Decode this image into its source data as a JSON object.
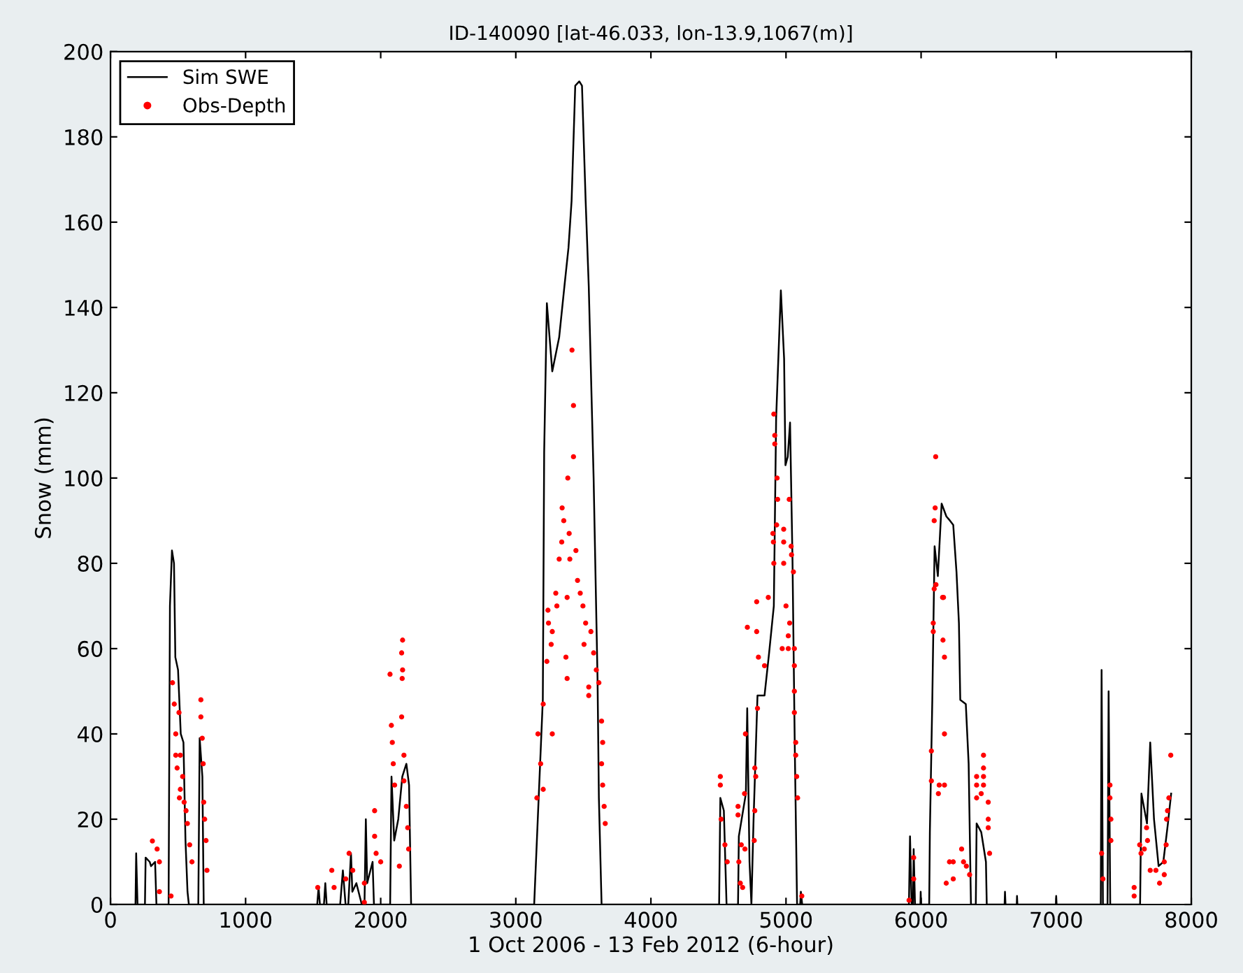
{
  "chart_data": {
    "type": "line",
    "title": "ID-140090 [lat-46.033, lon-13.9,1067(m)]",
    "xlabel": "1 Oct 2006 - 13 Feb 2012 (6-hour)",
    "ylabel": "Snow (mm)",
    "xlim": [
      0,
      8000
    ],
    "xticks": [
      0,
      1000,
      2000,
      3000,
      4000,
      5000,
      6000,
      7000,
      8000
    ],
    "ylim": [
      0,
      200
    ],
    "yticks": [
      0,
      20,
      40,
      60,
      80,
      100,
      120,
      140,
      160,
      180,
      200
    ],
    "grid": false,
    "legend": "top left",
    "series": [
      {
        "name": "Sim SWE",
        "color": "#000000",
        "marker": "none",
        "line_style": "solid",
        "x": [
          0,
          185,
          190,
          200,
          255,
          260,
          290,
          300,
          330,
          340,
          430,
          440,
          455,
          470,
          480,
          500,
          520,
          540,
          555,
          570,
          580,
          650,
          660,
          680,
          690,
          1530,
          1540,
          1550,
          1580,
          1590,
          1600,
          1700,
          1720,
          1740,
          1760,
          1780,
          1790,
          1820,
          1860,
          1880,
          1890,
          1900,
          1940,
          1950,
          2070,
          2080,
          2100,
          2130,
          2160,
          2190,
          2210,
          2225,
          3136,
          3160,
          3200,
          3210,
          3230,
          3270,
          3321,
          3360,
          3390,
          3413,
          3440,
          3470,
          3490,
          3517,
          3540,
          3576,
          3605,
          3615,
          3635,
          4505,
          4514,
          4540,
          4560,
          4645,
          4651,
          4703,
          4713,
          4730,
          4744,
          4760,
          4772,
          4789,
          4841,
          4875,
          4910,
          4927,
          4962,
          4986,
          4996,
          5013,
          5030,
          5048,
          5065,
          5082,
          5105,
          5110,
          5120,
          5910,
          5918,
          5930,
          5940,
          5945,
          5955,
          5995,
          5997,
          6000,
          6060,
          6065,
          6083,
          6100,
          6124,
          6152,
          6187,
          6214,
          6238,
          6262,
          6280,
          6290,
          6331,
          6352,
          6369,
          6405,
          6411,
          6445,
          6480,
          6486,
          6618,
          6621,
          6625,
          6708,
          6710,
          6713,
          6998,
          7000,
          7003,
          7330,
          7336,
          7346,
          7380,
          7388,
          7400,
          7621,
          7631,
          7672,
          7696,
          7724,
          7758,
          7793,
          7827,
          7851
        ],
        "values": [
          0,
          0,
          12,
          0,
          0,
          11,
          10,
          9,
          10,
          0,
          0,
          70,
          83,
          80,
          58,
          55,
          40,
          38,
          15,
          3,
          0,
          0,
          39,
          30,
          0,
          0,
          4,
          0,
          0,
          5,
          0,
          0,
          8,
          0,
          0,
          12,
          3,
          5,
          0,
          0,
          20,
          5,
          10,
          0,
          0,
          30,
          15,
          20,
          30,
          33,
          28,
          0,
          0,
          18,
          48,
          106,
          141,
          125,
          133,
          145,
          154,
          165,
          192,
          193,
          192,
          165,
          145,
          100,
          53,
          25,
          0,
          0,
          25,
          22,
          0,
          0,
          16,
          26,
          46,
          10,
          0,
          20,
          32,
          49,
          49,
          59,
          70,
          114,
          144,
          128,
          103,
          105,
          113,
          81,
          37,
          0,
          0,
          3,
          0,
          0,
          16,
          0,
          0,
          13,
          0,
          0,
          3,
          0,
          0,
          17,
          48,
          84,
          77,
          94,
          91,
          90,
          89,
          78,
          66,
          48,
          47,
          33,
          0,
          0,
          19,
          17,
          10,
          0,
          0,
          3,
          0,
          0,
          2,
          0,
          0,
          2,
          0,
          0,
          55,
          0,
          0,
          50,
          0,
          0,
          26,
          19,
          38,
          20,
          9,
          10,
          19,
          26
        ]
      },
      {
        "name": "Obs-Depth",
        "type": "scatter",
        "color": "#ff0000",
        "marker": "circle",
        "x": [
          310,
          345,
          362,
          362,
          448,
          459,
          472,
          507,
          483,
          483,
          517,
          493,
          517,
          534,
          510,
          545,
          559,
          569,
          586,
          603,
          669,
          669,
          679,
          686,
          690,
          697,
          707,
          714,
          1534,
          1638,
          1655,
          1741,
          1766,
          1793,
          1879,
          1879,
          1955,
          1955,
          1966,
          2000,
          2069,
          2079,
          2086,
          2093,
          2103,
          2155,
          2162,
          2162,
          2159,
          2155,
          2172,
          2172,
          2190,
          2200,
          2207,
          2138,
          3416,
          3427,
          3427,
          3385,
          3343,
          3355,
          3395,
          3340,
          3400,
          3321,
          3445,
          3457,
          3477,
          3296,
          3304,
          3380,
          3497,
          3238,
          3242,
          3270,
          3517,
          3556,
          3505,
          3576,
          3262,
          3371,
          3230,
          3596,
          3615,
          3380,
          3540,
          3540,
          3203,
          3164,
          3270,
          3184,
          3203,
          3156,
          3635,
          3643,
          3635,
          3643,
          3654,
          3662,
          4910,
          4917,
          4917,
          4934,
          4938,
          5024,
          4903,
          4931,
          4983,
          4907,
          4983,
          4910,
          4983,
          5038,
          5041,
          5055,
          4783,
          4869,
          4714,
          4783,
          5000,
          5027,
          5017,
          4972,
          5017,
          4796,
          4841,
          5062,
          5062,
          5062,
          4789,
          5062,
          5072,
          5072,
          4700,
          4769,
          4776,
          5079,
          5086,
          4514,
          4514,
          4693,
          4769,
          4520,
          4548,
          4565,
          4645,
          4645,
          4669,
          4696,
          4651,
          4662,
          4679,
          4765,
          5117,
          6108,
          6104,
          6097,
          6097,
          6110,
          6166,
          6159,
          6090,
          6090,
          6162,
          6173,
          6173,
          6076,
          6076,
          6134,
          6173,
          6128,
          6462,
          6462,
          6411,
          6462,
          6411,
          6462,
          6445,
          6411,
          6497,
          6497,
          6497,
          6507,
          6300,
          6210,
          6238,
          6314,
          6335,
          6359,
          6186,
          6238,
          5945,
          5945,
          5911,
          7336,
          7346,
          7398,
          7398,
          7405,
          7405,
          7577,
          7577,
          7618,
          7628,
          7652,
          7669,
          7676,
          7696,
          7738,
          7765,
          7800,
          7800,
          7814,
          7817,
          7824,
          7834,
          7848
        ],
        "values": [
          14.9,
          13,
          10,
          3,
          2,
          52,
          47,
          45,
          40,
          35,
          35,
          32,
          27,
          30,
          25,
          24,
          22,
          19,
          14,
          10,
          48,
          44,
          39,
          33,
          24,
          20,
          15,
          8,
          4,
          8,
          4,
          6,
          12,
          8,
          5,
          0.5,
          22,
          16,
          12,
          10,
          54,
          42,
          38,
          33,
          28,
          59,
          62,
          55,
          53,
          44,
          35,
          29,
          23,
          18,
          13,
          9,
          130,
          117,
          105,
          100,
          93,
          90,
          87,
          85,
          81,
          81,
          83,
          76,
          73,
          73,
          70,
          72,
          70,
          69,
          66,
          64,
          66,
          64,
          61,
          59,
          61,
          58,
          57,
          55,
          52,
          53,
          51,
          49,
          47,
          40,
          40,
          33,
          27,
          25,
          43,
          38,
          33,
          28,
          23,
          19,
          115,
          110,
          108,
          100,
          95,
          95,
          87,
          89,
          88,
          85,
          85,
          80,
          80,
          84,
          82,
          78,
          71,
          72,
          65,
          64,
          70,
          66,
          63,
          60,
          60,
          58,
          56,
          60,
          56,
          50,
          46,
          45,
          38,
          35,
          40,
          32,
          30,
          30,
          25,
          30,
          28,
          26,
          22,
          20,
          14,
          10,
          23,
          21,
          14,
          13,
          10,
          5,
          4,
          15,
          2,
          105,
          93,
          90,
          74,
          75,
          72,
          72,
          66,
          64,
          62,
          58,
          40,
          36,
          29,
          28,
          28,
          26,
          35,
          32,
          30,
          30,
          28,
          28,
          26,
          25,
          24,
          20,
          18,
          12,
          13,
          10,
          10,
          10,
          9,
          7,
          5,
          6,
          11,
          6,
          1,
          12,
          6,
          28,
          25,
          20,
          15,
          4,
          2,
          14,
          12,
          13,
          18,
          15,
          8,
          8,
          5,
          7,
          10,
          14,
          20,
          22,
          25,
          35
        ]
      }
    ]
  }
}
